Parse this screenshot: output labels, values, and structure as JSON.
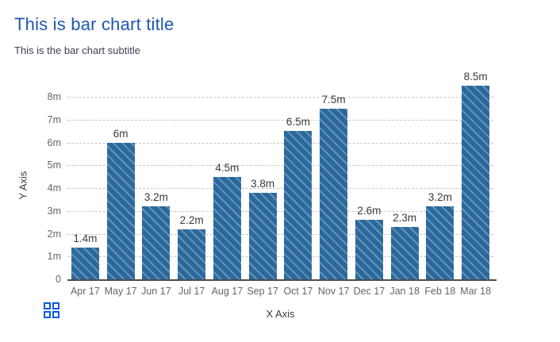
{
  "header": {
    "title": "This is bar chart title",
    "subtitle": "This is the bar chart subtitle"
  },
  "chart_data": {
    "type": "bar",
    "title": "This is bar chart title",
    "subtitle": "This is the bar chart subtitle",
    "categories": [
      "Apr 17",
      "May 17",
      "Jun 17",
      "Jul 17",
      "Aug 17",
      "Sep 17",
      "Oct 17",
      "Nov 17",
      "Dec 17",
      "Jan 18",
      "Feb 18",
      "Mar 18"
    ],
    "values": [
      1.4,
      6,
      3.2,
      2.2,
      4.5,
      3.8,
      6.5,
      7.5,
      2.6,
      2.3,
      3.2,
      8.5
    ],
    "value_labels": [
      "1.4m",
      "6m",
      "3.2m",
      "2.2m",
      "4.5m",
      "3.8m",
      "6.5m",
      "7.5m",
      "2.6m",
      "2.3m",
      "3.2m",
      "8.5m"
    ],
    "xlabel": "X Axis",
    "ylabel": "Y Axis",
    "ylim": [
      0,
      8.78
    ],
    "yticks": {
      "values": [
        0,
        1,
        2,
        3,
        4,
        5,
        6,
        7,
        8
      ],
      "labels": [
        "0",
        "1m",
        "2m",
        "3m",
        "4m",
        "5m",
        "6m",
        "7m",
        "8m"
      ]
    },
    "grid": "horizontal-dashed",
    "legend": "none",
    "bar_style": "diagonal-hatch"
  },
  "colors": {
    "title": "#1e57b0",
    "subtitle": "#3d4156",
    "bar_fill": "#2b699c",
    "bar_hatch": "rgba(255,255,255,0.28)",
    "gridline": "#c6c6c6",
    "axis_line": "#4d4d4d",
    "tick_text": "#666666",
    "value_text": "#3a3a3a",
    "axis_title_text": "#3a3a3a",
    "icon_blue": "#0d5bd7"
  },
  "icons": {
    "bottom_left": "grid-menu-icon"
  }
}
